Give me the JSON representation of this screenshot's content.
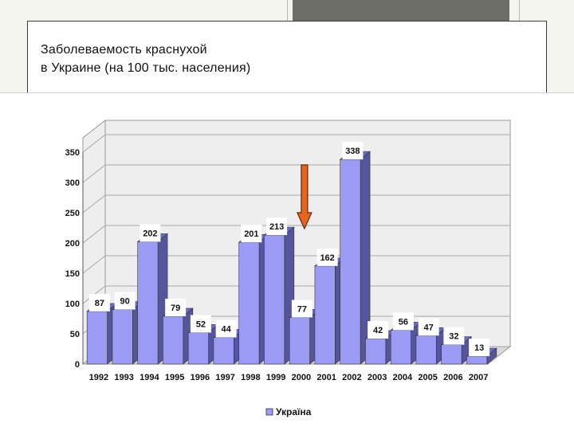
{
  "slide": {
    "title": "Заболеваемость краснухой\nв Украине  (на 100 тыс. населения)"
  },
  "chart_data": {
    "type": "bar",
    "style": "3d-column",
    "categories": [
      "1992",
      "1993",
      "1994",
      "1995",
      "1996",
      "1997",
      "1998",
      "1999",
      "2000",
      "2001",
      "2002",
      "2003",
      "2004",
      "2005",
      "2006",
      "2007"
    ],
    "series": [
      {
        "name": "Україна",
        "values": [
          87,
          90,
          202,
          79,
          52,
          44,
          201,
          213,
          77,
          162,
          338,
          42,
          56,
          47,
          32,
          13
        ]
      }
    ],
    "yticks": [
      0,
      50,
      100,
      150,
      200,
      250,
      300,
      350
    ],
    "ylim": [
      0,
      350
    ],
    "grid": true,
    "legend": "bottom",
    "colors": {
      "bar_front": "#9b9bf5",
      "bar_top": "#6b6bc4",
      "bar_side": "#55559e",
      "label_bg": "#ffffff",
      "arrow": "#e8641e",
      "arrow_outline": "#5a2a0c"
    },
    "annotation": {
      "type": "arrow-down",
      "category": "2000"
    }
  }
}
